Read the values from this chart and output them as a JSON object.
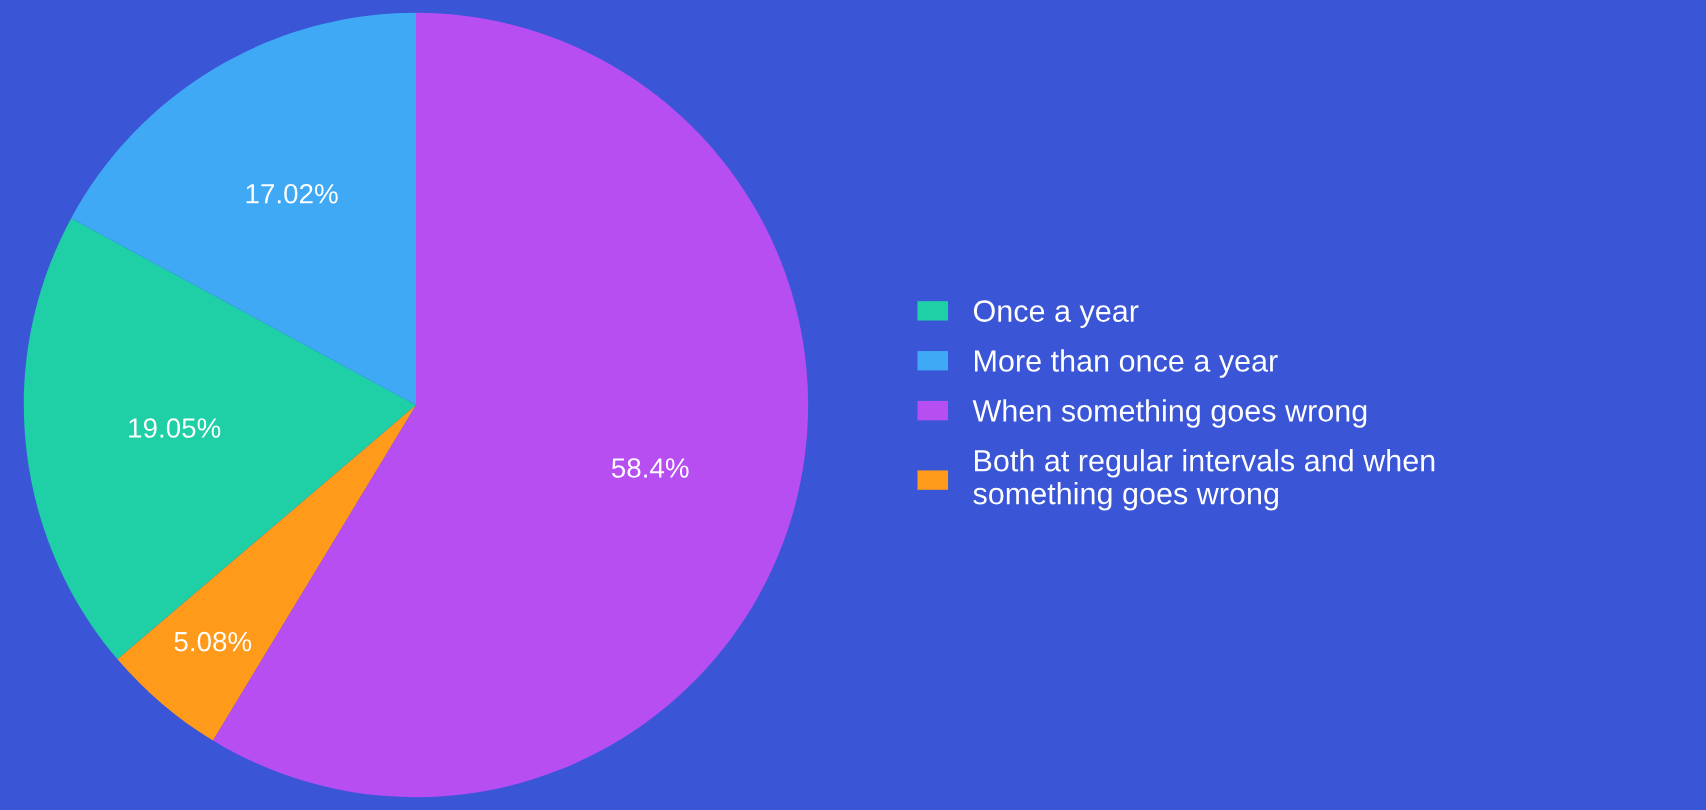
{
  "chart_data": {
    "type": "pie",
    "categories": [
      "Once a year",
      "More than once a year",
      "When something goes wrong",
      "Both at regular intervals and when\nsomething goes wrong"
    ],
    "values": [
      19.05,
      17.02,
      58.4,
      5.08
    ],
    "colors": [
      "#1fcfa6",
      "#3fa9f5",
      "#b64ef2",
      "#ff9a1a"
    ],
    "value_labels": [
      "19.05%",
      "17.02%",
      "58.4%",
      "5.08%"
    ],
    "legend": "right"
  }
}
